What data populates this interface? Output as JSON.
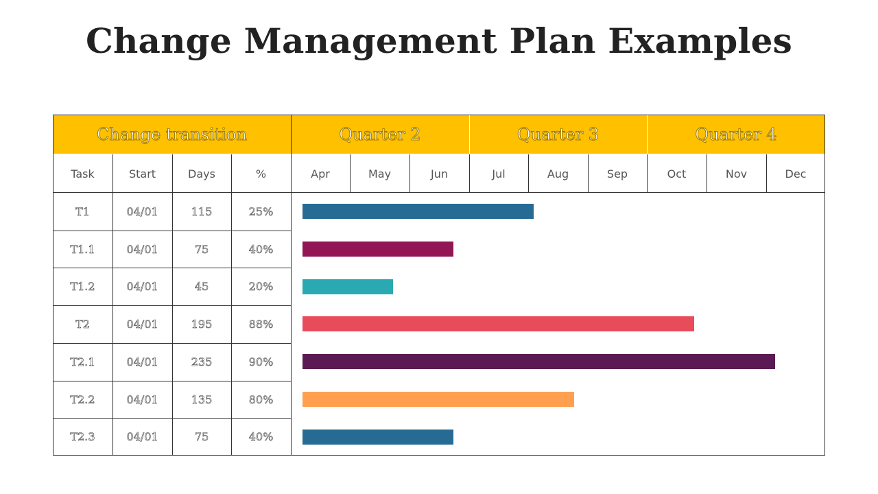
{
  "title": "Change Management Plan Examples",
  "table": {
    "group_headers": [
      "Change transition",
      "Quarter 2",
      "Quarter 3",
      "Quarter 4"
    ],
    "columns": [
      "Task",
      "Start",
      "Days",
      "%"
    ],
    "months": [
      "Apr",
      "May",
      "Jun",
      "Jul",
      "Aug",
      "Sep",
      "Oct",
      "Nov",
      "Dec"
    ]
  },
  "chart_data": {
    "type": "bar",
    "orientation": "horizontal",
    "subtype": "gantt",
    "categories": [
      "T1",
      "T1.1",
      "T1.2",
      "T2",
      "T2.1",
      "T2.2",
      "T2.3"
    ],
    "start": [
      "04/01",
      "04/01",
      "04/01",
      "04/01",
      "04/01",
      "04/01",
      "04/01"
    ],
    "values": [
      115,
      75,
      45,
      195,
      235,
      135,
      75
    ],
    "percent": [
      "25%",
      "40%",
      "20%",
      "88%",
      "90%",
      "80%",
      "40%"
    ],
    "colors": [
      "#266b94",
      "#911653",
      "#2aa9b3",
      "#e84b5a",
      "#5c1a54",
      "#ff9f4f",
      "#266b94"
    ]
  }
}
